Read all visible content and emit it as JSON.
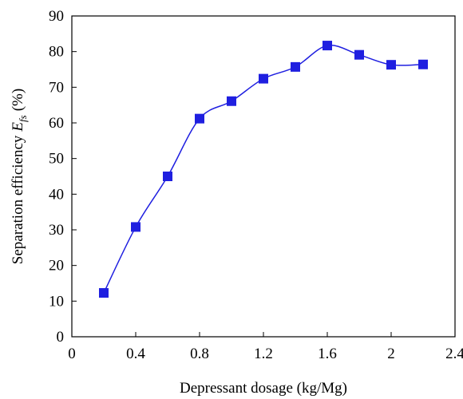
{
  "chart_data": {
    "type": "line",
    "x_label": "Depressant dosage (kg/Mg)",
    "y_label": [
      "Separation efficiency",
      "E",
      "fs",
      "(%)"
    ],
    "x": [
      0.2,
      0.4,
      0.6,
      0.8,
      1.0,
      1.2,
      1.4,
      1.6,
      1.8,
      2.0,
      2.2
    ],
    "series": [
      {
        "color": "#1f1fe0",
        "values": [
          12.3,
          30.8,
          45.0,
          61.2,
          66.1,
          72.4,
          75.7,
          81.7,
          79.1,
          76.3,
          76.4
        ]
      }
    ],
    "xlim": [
      0,
      2.4
    ],
    "xticks": [
      0,
      0.4,
      0.8,
      1.2,
      1.6,
      2,
      2.4
    ],
    "ylim": [
      0,
      90
    ],
    "yticks": [
      0,
      10,
      20,
      30,
      40,
      50,
      60,
      70,
      80,
      90
    ],
    "smooth": true,
    "marker": "square"
  }
}
